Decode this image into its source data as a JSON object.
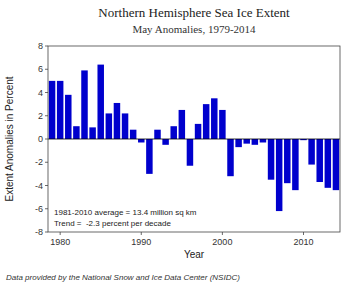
{
  "chart_data": {
    "type": "bar",
    "title": "Northern Hemisphere Sea Ice Extent",
    "subtitle": "May Anomalies, 1979-2014",
    "xlabel": "Year",
    "ylabel": "Extent Anomalies in Percent",
    "footer": "Data provided by the National Snow and Ice Data Center (NSIDC)",
    "annotations": [
      "1981-2010 average = 13.4 million sq km",
      "Trend =  -2.3 percent per decade"
    ],
    "x": [
      1979,
      1980,
      1981,
      1982,
      1983,
      1984,
      1985,
      1986,
      1987,
      1988,
      1989,
      1990,
      1991,
      1992,
      1993,
      1994,
      1995,
      1996,
      1997,
      1998,
      1999,
      2000,
      2001,
      2002,
      2003,
      2004,
      2005,
      2006,
      2007,
      2008,
      2009,
      2010,
      2011,
      2012,
      2013,
      2014
    ],
    "values": [
      5.0,
      5.0,
      3.8,
      1.1,
      5.9,
      1.0,
      6.4,
      2.2,
      3.1,
      2.2,
      0.8,
      -0.3,
      -3.0,
      0.8,
      -0.5,
      1.1,
      2.5,
      -2.3,
      1.3,
      3.0,
      3.5,
      2.5,
      -3.2,
      -0.7,
      -0.4,
      -0.5,
      -0.3,
      -3.5,
      -6.2,
      -3.8,
      -4.4,
      -0.1,
      -2.2,
      -3.7,
      -4.2,
      -4.4
    ],
    "color": "#0000CD",
    "xlim": [
      1978.5,
      2014.5
    ],
    "xticks": [
      1980,
      1990,
      2000,
      2010
    ],
    "ylim": [
      -8,
      8
    ],
    "yticks": [
      -8,
      -6,
      -4,
      -2,
      0,
      2,
      4,
      6,
      8
    ],
    "grid": false
  }
}
